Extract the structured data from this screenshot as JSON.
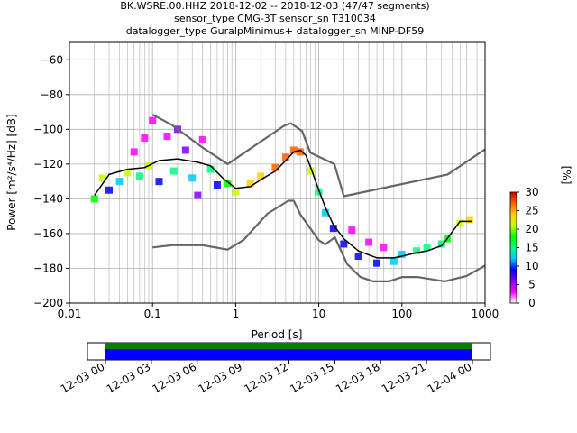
{
  "chart_data": {
    "type": "heatmap",
    "title_lines": [
      "BK.WSRE.00.HHZ   2018-12-02 -- 2018-12-03  (47/47 segments)",
      "sensor_type CMG-3T sensor_sn T310034",
      "datalogger_type GuralpMinimus+ datalogger_sn MINP-DF59"
    ],
    "xlabel": "Period [s]",
    "ylabel": "Power [m²/s⁴/Hz] [dB]",
    "x_scale": "log",
    "xlim": [
      0.01,
      1000
    ],
    "ylim": [
      -200,
      -50
    ],
    "x_ticks": [
      {
        "value": 0.01,
        "label": "0.01"
      },
      {
        "value": 0.1,
        "label": "0.1"
      },
      {
        "value": 1,
        "label": "1"
      },
      {
        "value": 10,
        "label": "10"
      },
      {
        "value": 100,
        "label": "100"
      },
      {
        "value": 1000,
        "label": "1000"
      }
    ],
    "y_ticks": [
      {
        "value": -60,
        "label": "−60"
      },
      {
        "value": -80,
        "label": "−80"
      },
      {
        "value": -100,
        "label": "−100"
      },
      {
        "value": -120,
        "label": "−120"
      },
      {
        "value": -140,
        "label": "−140"
      },
      {
        "value": -160,
        "label": "−160"
      },
      {
        "value": -180,
        "label": "−180"
      },
      {
        "value": -200,
        "label": "−200"
      }
    ],
    "grid": true,
    "colorbar": {
      "label": "[%]",
      "min": 0,
      "max": 30,
      "ticks": [
        {
          "value": 0,
          "label": "0"
        },
        {
          "value": 5,
          "label": "5"
        },
        {
          "value": 10,
          "label": "10"
        },
        {
          "value": 15,
          "label": "15"
        },
        {
          "value": 20,
          "label": "20"
        },
        {
          "value": 25,
          "label": "25"
        },
        {
          "value": 30,
          "label": "30"
        }
      ],
      "colors": [
        "#ffffff",
        "#ff00ff",
        "#8000ff",
        "#0000ff",
        "#00c8ff",
        "#00ff80",
        "#00ff00",
        "#c8ff00",
        "#ffd000",
        "#ff6000",
        "#d00000"
      ]
    },
    "series": [
      {
        "role": "mode",
        "color": "#000000",
        "x": [
          0.02,
          0.03,
          0.05,
          0.08,
          0.12,
          0.2,
          0.35,
          0.5,
          0.7,
          1.0,
          1.5,
          2,
          3,
          4,
          5,
          6,
          7,
          8,
          10,
          12,
          15,
          20,
          30,
          50,
          80,
          100,
          150,
          200,
          300,
          350,
          500,
          700
        ],
        "y": [
          -138,
          -126,
          -123,
          -122,
          -118,
          -117,
          -119,
          -121,
          -128,
          -134,
          -133,
          -129,
          -124,
          -118,
          -113,
          -112,
          -115,
          -122,
          -135,
          -145,
          -155,
          -163,
          -170,
          -174,
          -174,
          -173,
          -171,
          -170,
          -167,
          -163,
          -153,
          -153
        ]
      },
      {
        "role": "noise-model-high",
        "color": "#666666",
        "x": [
          0.1,
          0.17,
          0.4,
          0.8,
          3.8,
          4.6,
          6.3,
          7.9,
          15.4,
          20,
          354.8,
          1000
        ],
        "y": [
          -91.5,
          -97.4,
          -110.5,
          -120,
          -98,
          -96.5,
          -101,
          -113.5,
          -120,
          -138.5,
          -126,
          -111.5
        ]
      },
      {
        "role": "noise-model-low",
        "color": "#666666",
        "x": [
          0.1,
          0.17,
          0.4,
          0.8,
          1.24,
          2.4,
          4.3,
          5,
          6,
          10,
          12,
          15.6,
          21.9,
          31.6,
          45,
          70,
          101,
          154,
          328,
          600,
          1000
        ],
        "y": [
          -168,
          -166.7,
          -166.7,
          -169.2,
          -163.7,
          -148.6,
          -141.1,
          -141.1,
          -149,
          -163.8,
          -166.2,
          -162.1,
          -177.5,
          -185,
          -187.5,
          -187.5,
          -185,
          -185,
          -187.5,
          -184.4,
          -178.4
        ]
      }
    ],
    "pdf_bins": [
      {
        "x": 0.02,
        "y": -140,
        "pct": 18
      },
      {
        "x": 0.025,
        "y": -128,
        "pct": 22
      },
      {
        "x": 0.03,
        "y": -135,
        "pct": 8
      },
      {
        "x": 0.04,
        "y": -130,
        "pct": 12
      },
      {
        "x": 0.05,
        "y": -125,
        "pct": 20
      },
      {
        "x": 0.06,
        "y": -113,
        "pct": 3
      },
      {
        "x": 0.07,
        "y": -127,
        "pct": 14
      },
      {
        "x": 0.08,
        "y": -105,
        "pct": 2
      },
      {
        "x": 0.09,
        "y": -121,
        "pct": 20
      },
      {
        "x": 0.1,
        "y": -95,
        "pct": 2
      },
      {
        "x": 0.12,
        "y": -130,
        "pct": 10
      },
      {
        "x": 0.15,
        "y": -104,
        "pct": 4
      },
      {
        "x": 0.18,
        "y": -124,
        "pct": 16
      },
      {
        "x": 0.2,
        "y": -100,
        "pct": 5
      },
      {
        "x": 0.25,
        "y": -112,
        "pct": 6
      },
      {
        "x": 0.3,
        "y": -128,
        "pct": 12
      },
      {
        "x": 0.35,
        "y": -138,
        "pct": 7
      },
      {
        "x": 0.4,
        "y": -106,
        "pct": 4
      },
      {
        "x": 0.5,
        "y": -123,
        "pct": 14
      },
      {
        "x": 0.6,
        "y": -132,
        "pct": 10
      },
      {
        "x": 0.8,
        "y": -131,
        "pct": 18
      },
      {
        "x": 1.0,
        "y": -136,
        "pct": 22
      },
      {
        "x": 1.5,
        "y": -131,
        "pct": 25
      },
      {
        "x": 2.0,
        "y": -127,
        "pct": 24
      },
      {
        "x": 3.0,
        "y": -122,
        "pct": 26
      },
      {
        "x": 4.0,
        "y": -116,
        "pct": 26
      },
      {
        "x": 5.0,
        "y": -112,
        "pct": 28
      },
      {
        "x": 6.0,
        "y": -113,
        "pct": 26
      },
      {
        "x": 8.0,
        "y": -124,
        "pct": 22
      },
      {
        "x": 10,
        "y": -136,
        "pct": 16
      },
      {
        "x": 12,
        "y": -148,
        "pct": 12
      },
      {
        "x": 15,
        "y": -157,
        "pct": 10
      },
      {
        "x": 20,
        "y": -166,
        "pct": 8
      },
      {
        "x": 25,
        "y": -158,
        "pct": 3
      },
      {
        "x": 30,
        "y": -173,
        "pct": 8
      },
      {
        "x": 40,
        "y": -165,
        "pct": 3
      },
      {
        "x": 50,
        "y": -177,
        "pct": 10
      },
      {
        "x": 60,
        "y": -168,
        "pct": 3
      },
      {
        "x": 80,
        "y": -176,
        "pct": 12
      },
      {
        "x": 100,
        "y": -172,
        "pct": 12
      },
      {
        "x": 150,
        "y": -170,
        "pct": 15
      },
      {
        "x": 200,
        "y": -168,
        "pct": 14
      },
      {
        "x": 300,
        "y": -166,
        "pct": 16
      },
      {
        "x": 350,
        "y": -163,
        "pct": 18
      },
      {
        "x": 500,
        "y": -154,
        "pct": 22
      },
      {
        "x": 650,
        "y": -152,
        "pct": 24
      }
    ]
  },
  "timeline": {
    "tick_labels": [
      "12-03 00",
      "12-03 03",
      "12-03 06",
      "12-03 09",
      "12-03 12",
      "12-03 15",
      "12-03 18",
      "12-03 21",
      "12-04 00"
    ],
    "bar_colors": [
      "#008000",
      "#0000ff"
    ]
  }
}
